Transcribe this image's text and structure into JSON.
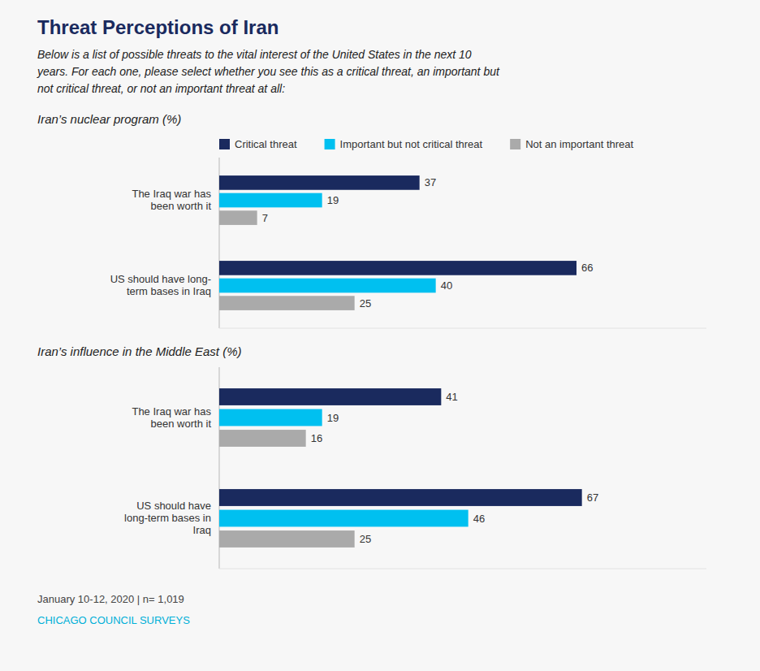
{
  "title": "Threat Perceptions of Iran",
  "subtitle": "Below is a list of possible threats to the vital interest of the United States in the next 10\nyears. For each one, please select whether you see this as a critical threat, an important but\nnot critical threat, or not an important threat at all:",
  "annotations": [
    "January 10-12, 2020 | n= 1,019",
    "CHICAGO COUNCIL SURVEYS"
  ],
  "chart_data": [
    {
      "type": "bar",
      "orientation": "horizontal",
      "title": "Iran’s nuclear program (%)",
      "categories": [
        "The Iraq war has\nbeen worth it",
        "US should have long-\nterm bases in Iraq"
      ],
      "series": [
        {
          "name": "Critical threat",
          "color": "#1a2a5e",
          "values": [
            37,
            66
          ]
        },
        {
          "name": "Important but not critical threat",
          "color": "#00c0f0",
          "values": [
            19,
            40
          ]
        },
        {
          "name": "Not an important threat",
          "color": "#aaaaaa",
          "values": [
            7,
            25
          ]
        }
      ],
      "xlim": [
        0,
        90
      ],
      "data_labels": true,
      "tick_labels": "y",
      "legend": "top"
    },
    {
      "type": "bar",
      "orientation": "horizontal",
      "title": "Iran’s influence in the Middle East (%)",
      "categories": [
        "The Iraq war has\nbeen worth it",
        "US should have\nlong-term bases in\nIraq"
      ],
      "series": [
        {
          "name": "Critical threat",
          "color": "#1a2a5e",
          "values": [
            41,
            67
          ]
        },
        {
          "name": "Important but not critical threat",
          "color": "#00c0f0",
          "values": [
            19,
            46
          ]
        },
        {
          "name": "Not an important threat",
          "color": "#aaaaaa",
          "values": [
            16,
            25
          ]
        }
      ],
      "xlim": [
        0,
        90
      ],
      "data_labels": true,
      "tick_labels": "y"
    }
  ]
}
